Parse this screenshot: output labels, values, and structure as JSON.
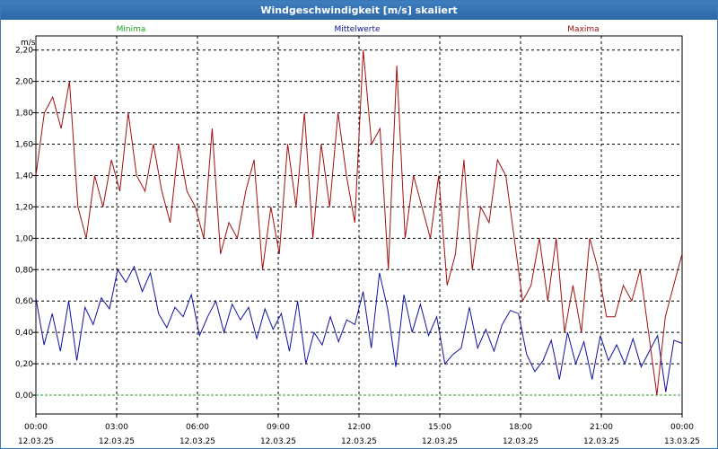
{
  "chart_data": {
    "type": "line",
    "title": "Windgeschwindigkeit [m/s] skaliert",
    "ylabel": "m/s",
    "xlabel": "",
    "ylim": [
      -0.12,
      2.29
    ],
    "xlim": [
      0,
      24
    ],
    "grid": true,
    "legend": "top",
    "yticks": [
      "0,00",
      "0,20",
      "0,40",
      "0,60",
      "0,80",
      "1,00",
      "1,20",
      "1,40",
      "1,60",
      "1,80",
      "2,00",
      "2,20"
    ],
    "xticks": [
      {
        "time": "00:00",
        "date": "12.03.25"
      },
      {
        "time": "03:00",
        "date": "12.03.25"
      },
      {
        "time": "06:00",
        "date": "12.03.25"
      },
      {
        "time": "09:00",
        "date": "12.03.25"
      },
      {
        "time": "12:00",
        "date": "12.03.25"
      },
      {
        "time": "15:00",
        "date": "12.03.25"
      },
      {
        "time": "18:00",
        "date": "12.03.25"
      },
      {
        "time": "21:00",
        "date": "12.03.25"
      },
      {
        "time": "00:00",
        "date": "13.03.25"
      }
    ],
    "series": [
      {
        "name": "Minima",
        "color": "#20a020",
        "values": [
          0,
          0,
          0,
          0,
          0,
          0,
          0,
          0,
          0,
          0,
          0,
          0,
          0,
          0,
          0,
          0,
          0,
          0,
          0,
          0,
          0,
          0,
          0,
          0,
          0,
          0,
          0,
          0,
          0,
          0,
          0,
          0,
          0,
          0,
          0,
          0,
          0,
          0,
          0,
          0,
          0,
          0,
          0,
          0,
          0,
          0,
          0,
          0,
          0
        ]
      },
      {
        "name": "Mittelwerte",
        "color": "#1010a0",
        "values": [
          0.62,
          0.32,
          0.52,
          0.28,
          0.6,
          0.22,
          0.56,
          0.45,
          0.62,
          0.55,
          0.8,
          0.72,
          0.82,
          0.66,
          0.78,
          0.52,
          0.43,
          0.56,
          0.5,
          0.64,
          0.38,
          0.5,
          0.6,
          0.4,
          0.58,
          0.48,
          0.56,
          0.36,
          0.55,
          0.42,
          0.52,
          0.28,
          0.6,
          0.2,
          0.4,
          0.32,
          0.5,
          0.34,
          0.48,
          0.45,
          0.66,
          0.3,
          0.78,
          0.55,
          0.18,
          0.64,
          0.4,
          0.58,
          0.38,
          0.5,
          0.2,
          0.26,
          0.3,
          0.56,
          0.3,
          0.42,
          0.28,
          0.45,
          0.54,
          0.52,
          0.26,
          0.15,
          0.22,
          0.35,
          0.1,
          0.4,
          0.2,
          0.34,
          0.1,
          0.38,
          0.22,
          0.32,
          0.2,
          0.36,
          0.18,
          0.28,
          0.38,
          0.02,
          0.35,
          0.33
        ]
      },
      {
        "name": "Maxima",
        "color": "#a01010",
        "values": [
          1.4,
          1.8,
          1.9,
          1.7,
          2.0,
          1.2,
          1.0,
          1.4,
          1.2,
          1.5,
          1.3,
          1.8,
          1.4,
          1.3,
          1.6,
          1.3,
          1.1,
          1.6,
          1.3,
          1.2,
          1.0,
          1.7,
          0.9,
          1.1,
          1.0,
          1.3,
          1.5,
          0.8,
          1.2,
          0.9,
          1.6,
          1.2,
          1.8,
          1.0,
          1.6,
          1.2,
          1.8,
          1.4,
          1.1,
          2.2,
          1.6,
          1.7,
          0.8,
          2.1,
          1.0,
          1.4,
          1.2,
          1.0,
          1.4,
          0.7,
          0.9,
          1.5,
          0.8,
          1.2,
          1.1,
          1.5,
          1.4,
          1.0,
          0.6,
          0.7,
          1.0,
          0.6,
          1.0,
          0.4,
          0.7,
          0.4,
          1.0,
          0.8,
          0.5,
          0.5,
          0.7,
          0.6,
          0.8,
          0.4,
          0.0,
          0.5,
          0.7,
          0.9
        ]
      }
    ]
  }
}
